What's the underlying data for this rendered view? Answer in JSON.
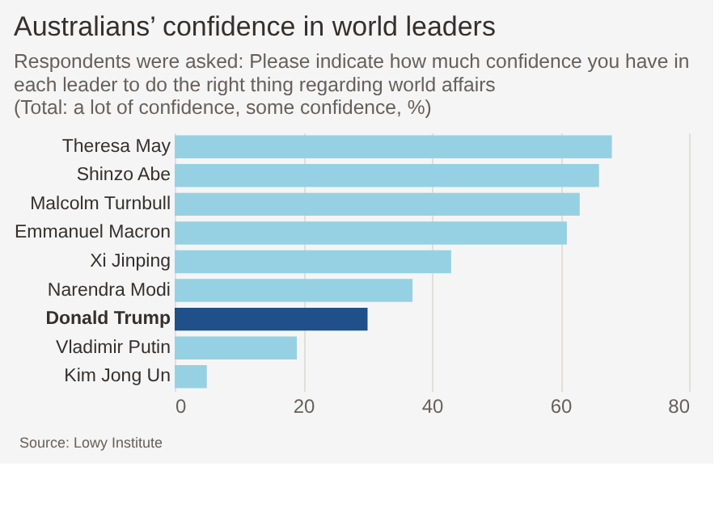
{
  "chart_data": {
    "type": "bar",
    "orientation": "horizontal",
    "title": "Australians’ confidence in world leaders",
    "subtitle": "Respondents were asked: Please indicate how much confidence you have in\neach leader to do the right thing regarding world affairs\n(Total: a lot of confidence, some confidence, %)",
    "categories": [
      "Theresa May",
      "Shinzo Abe",
      "Malcolm Turnbull",
      "Emmanuel Macron",
      "Xi Jinping",
      "Narendra Modi",
      "Donald Trump",
      "Vladimir Putin",
      "Kim Jong Un"
    ],
    "values": [
      68,
      66,
      63,
      61,
      43,
      37,
      30,
      19,
      5
    ],
    "colors": [
      "#96d1e3",
      "#96d1e3",
      "#96d1e3",
      "#96d1e3",
      "#96d1e3",
      "#96d1e3",
      "#1f5089",
      "#96d1e3",
      "#96d1e3"
    ],
    "xlim": [
      0,
      80
    ],
    "xticks": [
      0,
      20,
      40,
      60,
      80
    ],
    "grid": "x",
    "annotations": [
      "Source: Lowy Institute"
    ]
  }
}
